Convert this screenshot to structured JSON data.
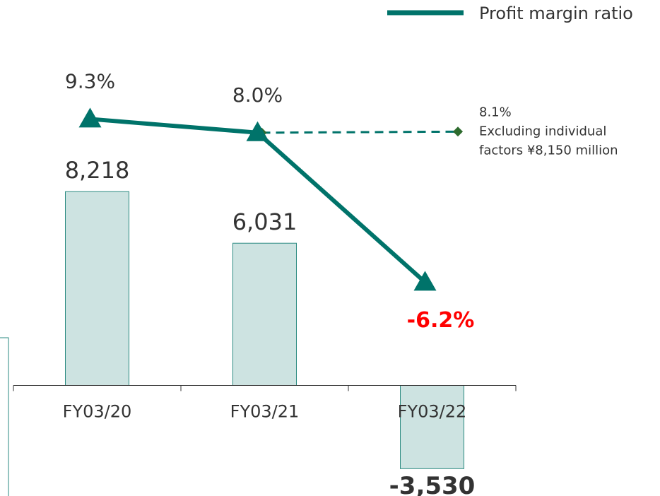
{
  "chart_data": {
    "type": "bar",
    "categories": [
      "FY03/20",
      "FY03/21",
      "FY03/22"
    ],
    "values": [
      8218,
      6031,
      -3530
    ],
    "value_labels": [
      "8,218",
      "6,031",
      "-3,530"
    ],
    "color": "#cde3e1",
    "ylim": [
      -4000,
      12000
    ],
    "line_series": {
      "name": "Profit margin ratio",
      "color": "#00736a",
      "axis": "y2",
      "values": [
        9.3,
        8.0,
        -6.2
      ],
      "value_labels": [
        "9.3%",
        "8.0%",
        "-6.2%"
      ]
    },
    "y2lim": [
      -10,
      20
    ],
    "annotation": {
      "value": 8.1,
      "label": "8.1%",
      "text": [
        "Excluding individual",
        "factors ¥8,150 million"
      ]
    }
  }
}
